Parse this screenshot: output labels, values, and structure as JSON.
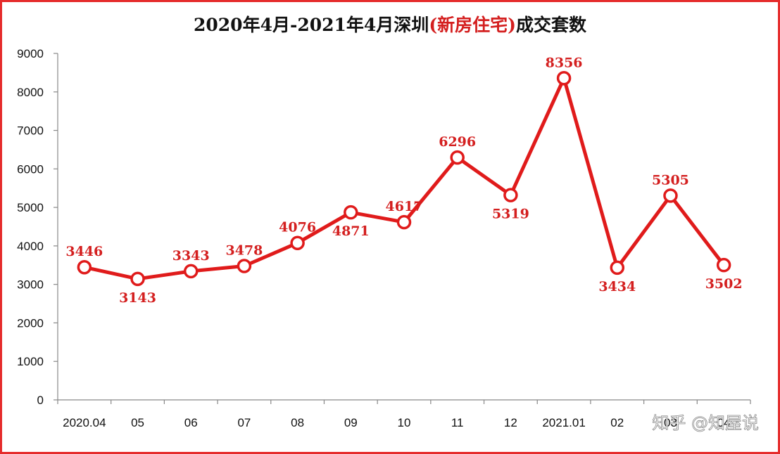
{
  "title": {
    "prefix": "2020年4月-2021年4月深圳",
    "highlight": "(新房住宅)",
    "suffix": "成交套数"
  },
  "watermark": "知乎 @知屋说",
  "colors": {
    "line": "#e01b1b",
    "label": "#d41f1f",
    "frame": "#e52b2b",
    "axis": "#888888"
  },
  "chart_data": {
    "type": "line",
    "title": "2020年4月-2021年4月深圳(新房住宅)成交套数",
    "categories": [
      "2020.04",
      "05",
      "06",
      "07",
      "08",
      "09",
      "10",
      "11",
      "12",
      "2021.01",
      "02",
      "03",
      "04"
    ],
    "x_tick_labels": [
      "2020.04",
      "05",
      "06",
      "07",
      "08",
      "09",
      "10",
      "11",
      "12",
      "2021.01",
      "02",
      "03",
      "04"
    ],
    "series": [
      {
        "values": [
          3446,
          3143,
          3343,
          3478,
          4076,
          4871,
          4617,
          6296,
          5319,
          8356,
          3434,
          5305,
          3502
        ]
      }
    ],
    "data_labels": [
      "3446",
      "3143",
      "3343",
      "3478",
      "4076",
      "4871",
      "4617",
      "6296",
      "5319",
      "8356",
      "3434",
      "5305",
      "3502"
    ],
    "label_position": [
      "above",
      "below",
      "above",
      "above",
      "above",
      "below",
      "above",
      "above",
      "below",
      "above",
      "below",
      "above",
      "below"
    ],
    "ylim": [
      0,
      9000
    ],
    "y_ticks": [
      0,
      1000,
      2000,
      3000,
      4000,
      5000,
      6000,
      7000,
      8000,
      9000
    ],
    "y_tick_labels": [
      "0",
      "1000",
      "2000",
      "3000",
      "4000",
      "5000",
      "6000",
      "7000",
      "8000",
      "9000"
    ],
    "grid": false,
    "legend": "none",
    "xlabel": "",
    "ylabel": ""
  }
}
